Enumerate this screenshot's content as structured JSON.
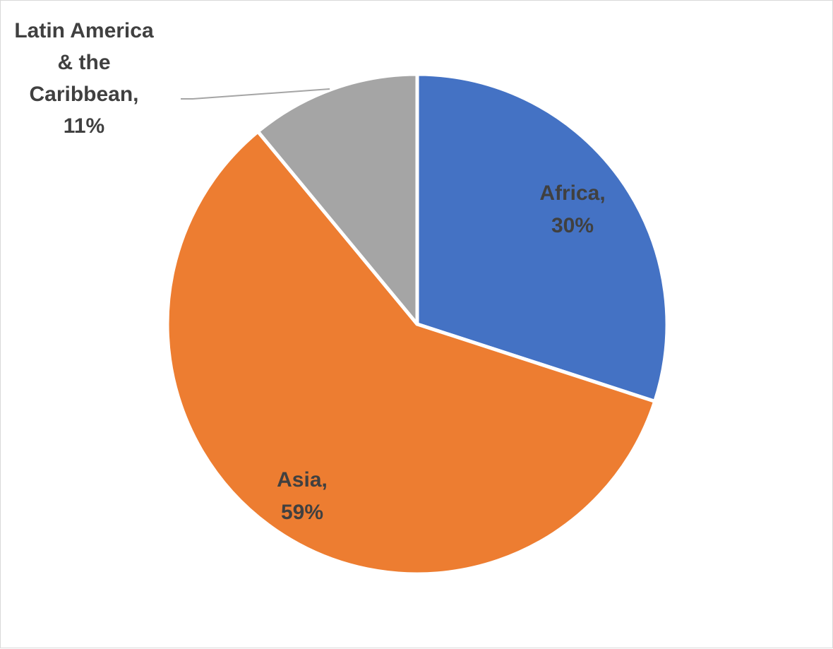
{
  "chart_data": {
    "type": "pie",
    "categories": [
      "Africa",
      "Asia",
      "Latin America & the Caribbean"
    ],
    "values": [
      30,
      59,
      11
    ],
    "unit": "%",
    "colors": [
      "#4472C4",
      "#ED7D31",
      "#A5A5A5"
    ],
    "labels": [
      {
        "lines": [
          "Africa,",
          "30%"
        ]
      },
      {
        "lines": [
          "Asia,",
          "59%"
        ]
      },
      {
        "lines": [
          "Latin America",
          "& the",
          "Caribbean,",
          "11%"
        ]
      }
    ],
    "start_angle": "12 o'clock",
    "direction": "clockwise",
    "slice_separator_color": "#ffffff",
    "leader_line_color": "#A5A5A5",
    "legend": "none"
  }
}
